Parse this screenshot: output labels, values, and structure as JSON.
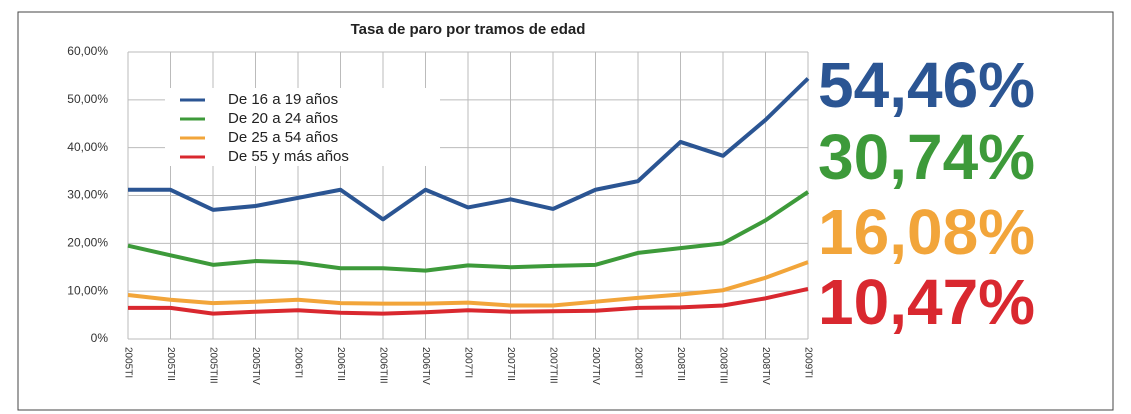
{
  "chart_data": {
    "type": "line",
    "title": "Tasa de paro por tramos de edad",
    "categories": [
      "2005TI",
      "2005TII",
      "2005TIII",
      "2005TIV",
      "2006TI",
      "2006TII",
      "2006TIII",
      "2006TIV",
      "2007TI",
      "2007TII",
      "2007TIII",
      "2007TIV",
      "2008TI",
      "2008TII",
      "2008TIII",
      "2008TIV",
      "2009TI"
    ],
    "series": [
      {
        "name": "De 16 a 19 años",
        "color": "#2b5593",
        "values": [
          31.2,
          31.2,
          27,
          27.8,
          29.5,
          31.2,
          25,
          31.2,
          27.5,
          29.2,
          27.2,
          31.2,
          33,
          41.2,
          38.3,
          45.8,
          54.46
        ],
        "value_labels": [
          null,
          null,
          null,
          null,
          null,
          null,
          null,
          null,
          null,
          null,
          null,
          null,
          null,
          null,
          null,
          null,
          "54,46%"
        ]
      },
      {
        "name": "De 20 a 24 años",
        "color": "#3d9a3a",
        "values": [
          19.5,
          17.5,
          15.5,
          16.3,
          16,
          14.8,
          14.8,
          14.3,
          15.4,
          15,
          15.3,
          15.5,
          18,
          19,
          20,
          24.8,
          30.74
        ],
        "value_labels": [
          null,
          null,
          null,
          null,
          null,
          null,
          null,
          null,
          null,
          null,
          null,
          null,
          null,
          null,
          null,
          null,
          "30,74%"
        ]
      },
      {
        "name": "De 25 a 54 años",
        "color": "#f2a53a",
        "values": [
          9.2,
          8.2,
          7.5,
          7.8,
          8.2,
          7.5,
          7.4,
          7.4,
          7.6,
          7,
          7,
          7.8,
          8.6,
          9.3,
          10.2,
          12.8,
          16.08
        ],
        "value_labels": [
          null,
          null,
          null,
          null,
          null,
          null,
          null,
          null,
          null,
          null,
          null,
          null,
          null,
          null,
          null,
          null,
          "16,08%"
        ]
      },
      {
        "name": "De 55 y más años",
        "color": "#d9282f",
        "values": [
          6.5,
          6.5,
          5.3,
          5.7,
          6,
          5.5,
          5.3,
          5.6,
          6,
          5.7,
          5.8,
          5.9,
          6.5,
          6.6,
          7,
          8.5,
          10.47
        ],
        "value_labels": [
          null,
          null,
          null,
          null,
          null,
          null,
          null,
          null,
          null,
          null,
          null,
          null,
          null,
          null,
          null,
          null,
          "10,47%"
        ]
      }
    ],
    "ylim": [
      0,
      60
    ],
    "yticks": [
      {
        "value": 0,
        "label": "0%"
      },
      {
        "value": 10,
        "label": "10,00%"
      },
      {
        "value": 20,
        "label": "20,00%"
      },
      {
        "value": 30,
        "label": "30,00%"
      },
      {
        "value": 40,
        "label": "40,00%"
      },
      {
        "value": 50,
        "label": "50,00%"
      },
      {
        "value": 60,
        "label": "60,00%"
      }
    ],
    "grid": true,
    "legend": "upper left"
  }
}
